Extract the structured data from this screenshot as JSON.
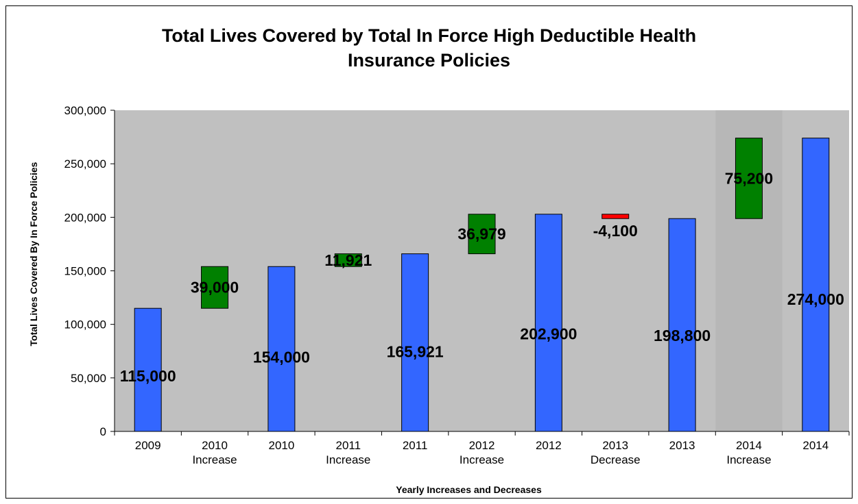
{
  "chart_data": {
    "type": "bar",
    "subtype": "waterfall",
    "title_lines": [
      "Total Lives Covered by Total In Force High Deductible Health",
      "Insurance Policies"
    ],
    "xlabel": "Yearly Increases and Decreases",
    "ylabel": "Total Lives Covered By In Force Policies",
    "ylim": [
      0,
      300000
    ],
    "y_ticks": [
      "0",
      "50,000",
      "100,000",
      "150,000",
      "200,000",
      "250,000",
      "300,000"
    ],
    "y_tick_values": [
      0,
      50000,
      100000,
      150000,
      200000,
      250000,
      300000
    ],
    "grid": false,
    "colors": {
      "total": "#3366FF",
      "increase": "#008000",
      "decrease": "#FF0000",
      "plot_background": "#C0C0C0",
      "plot_background_highlight": "#B7B7B7"
    },
    "bars": [
      {
        "category": [
          "2009"
        ],
        "kind": "total",
        "base": 0,
        "value": 115000,
        "label": "115,000"
      },
      {
        "category": [
          "2010",
          "Increase"
        ],
        "kind": "increase",
        "base": 115000,
        "value": 39000,
        "label": "39,000"
      },
      {
        "category": [
          "2010"
        ],
        "kind": "total",
        "base": 0,
        "value": 154000,
        "label": "154,000"
      },
      {
        "category": [
          "2011",
          "Increase"
        ],
        "kind": "increase",
        "base": 154000,
        "value": 11921,
        "label": "11,921"
      },
      {
        "category": [
          "2011"
        ],
        "kind": "total",
        "base": 0,
        "value": 165921,
        "label": "165,921"
      },
      {
        "category": [
          "2012",
          "Increase"
        ],
        "kind": "increase",
        "base": 165921,
        "value": 36979,
        "label": "36,979"
      },
      {
        "category": [
          "2012"
        ],
        "kind": "total",
        "base": 0,
        "value": 202900,
        "label": "202,900"
      },
      {
        "category": [
          "2013",
          "Decrease"
        ],
        "kind": "decrease",
        "base": 198800,
        "value": 4100,
        "label": "-4,100"
      },
      {
        "category": [
          "2013"
        ],
        "kind": "total",
        "base": 0,
        "value": 198800,
        "label": "198,800"
      },
      {
        "category": [
          "2014",
          "Increase"
        ],
        "kind": "increase",
        "base": 198800,
        "value": 75200,
        "label": "75,200"
      },
      {
        "category": [
          "2014"
        ],
        "kind": "total",
        "base": 0,
        "value": 274000,
        "label": "274,000"
      }
    ]
  }
}
